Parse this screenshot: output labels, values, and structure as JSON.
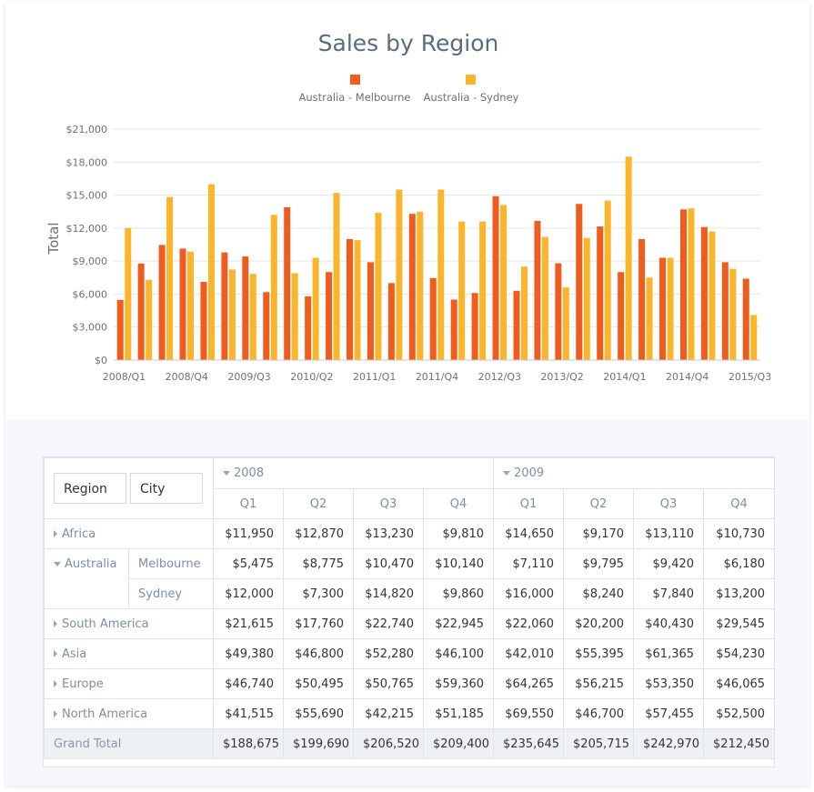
{
  "chart_data": {
    "type": "bar",
    "title": "Sales by Region",
    "ylabel": "Total",
    "xlabel": "",
    "ylim": [
      0,
      21000
    ],
    "yticks": [
      "$0",
      "$3,000",
      "$6,000",
      "$9,000",
      "$12,000",
      "$15,000",
      "$18,000",
      "$21,000"
    ],
    "ytick_values": [
      0,
      3000,
      6000,
      9000,
      12000,
      15000,
      18000,
      21000
    ],
    "categories": [
      "2008/Q1",
      "2008/Q2",
      "2008/Q3",
      "2008/Q4",
      "2009/Q1",
      "2009/Q2",
      "2009/Q3",
      "2009/Q4",
      "2010/Q1",
      "2010/Q2",
      "2010/Q3",
      "2010/Q4",
      "2011/Q1",
      "2011/Q2",
      "2011/Q3",
      "2011/Q4",
      "2012/Q1",
      "2012/Q2",
      "2012/Q3",
      "2012/Q4",
      "2013/Q1",
      "2013/Q2",
      "2013/Q3",
      "2013/Q4",
      "2014/Q1",
      "2014/Q2",
      "2014/Q3",
      "2014/Q4",
      "2015/Q1",
      "2015/Q2",
      "2015/Q3"
    ],
    "xtick_labels": [
      "2008/Q1",
      "2008/Q4",
      "2009/Q3",
      "2010/Q2",
      "2011/Q1",
      "2011/Q4",
      "2012/Q3",
      "2013/Q2",
      "2014/Q1",
      "2014/Q4",
      "2015/Q3"
    ],
    "series": [
      {
        "name": "Australia - Melbourne",
        "color": "#f05b1e",
        "values": [
          5475,
          8775,
          10470,
          10140,
          7110,
          9795,
          9420,
          6180,
          13900,
          5800,
          8000,
          11000,
          8900,
          7000,
          13300,
          7450,
          5500,
          6100,
          14900,
          6300,
          12650,
          8800,
          14200,
          12150,
          8000,
          11000,
          9300,
          13700,
          12100,
          8900,
          7400
        ]
      },
      {
        "name": "Australia - Sydney",
        "color": "#fbb52a",
        "values": [
          12000,
          7300,
          14820,
          9860,
          16000,
          8240,
          7840,
          13200,
          7900,
          9300,
          15200,
          10900,
          13400,
          15500,
          13500,
          15500,
          12600,
          12600,
          14100,
          8500,
          11200,
          6600,
          11100,
          14500,
          18500,
          7500,
          9300,
          13800,
          11700,
          8300,
          4100
        ]
      }
    ],
    "legend": "top-center",
    "grid": true
  },
  "grid": {
    "field_buttons": [
      "Region",
      "City"
    ],
    "years": [
      "2008",
      "2009"
    ],
    "quarters": [
      "Q1",
      "Q2",
      "Q3",
      "Q4",
      "Q1",
      "Q2",
      "Q3",
      "Q4"
    ],
    "rows": [
      {
        "region": "Africa",
        "city": "",
        "values": [
          "$11,950",
          "$12,870",
          "$13,230",
          "$9,810",
          "$14,650",
          "$9,170",
          "$13,110",
          "$10,730"
        ]
      },
      {
        "region": "Australia",
        "city": "Melbourne",
        "values": [
          "$5,475",
          "$8,775",
          "$10,470",
          "$10,140",
          "$7,110",
          "$9,795",
          "$9,420",
          "$6,180"
        ]
      },
      {
        "region": "",
        "city": "Sydney",
        "values": [
          "$12,000",
          "$7,300",
          "$14,820",
          "$9,860",
          "$16,000",
          "$8,240",
          "$7,840",
          "$13,200"
        ]
      },
      {
        "region": "South America",
        "city": "",
        "values": [
          "$21,615",
          "$17,760",
          "$22,740",
          "$22,945",
          "$22,060",
          "$20,200",
          "$40,430",
          "$29,545"
        ]
      },
      {
        "region": "Asia",
        "city": "",
        "values": [
          "$49,380",
          "$46,800",
          "$52,280",
          "$46,100",
          "$42,010",
          "$55,395",
          "$61,365",
          "$54,230"
        ]
      },
      {
        "region": "Europe",
        "city": "",
        "values": [
          "$46,740",
          "$50,495",
          "$50,765",
          "$59,360",
          "$64,265",
          "$56,215",
          "$53,350",
          "$46,065"
        ]
      },
      {
        "region": "North America",
        "city": "",
        "values": [
          "$41,515",
          "$55,690",
          "$42,215",
          "$51,185",
          "$69,550",
          "$46,700",
          "$57,455",
          "$52,500"
        ]
      }
    ],
    "grand_total": {
      "label": "Grand Total",
      "values": [
        "$188,675",
        "$199,690",
        "$206,520",
        "$209,400",
        "$235,645",
        "$205,715",
        "$242,970",
        "$212,450"
      ]
    }
  }
}
